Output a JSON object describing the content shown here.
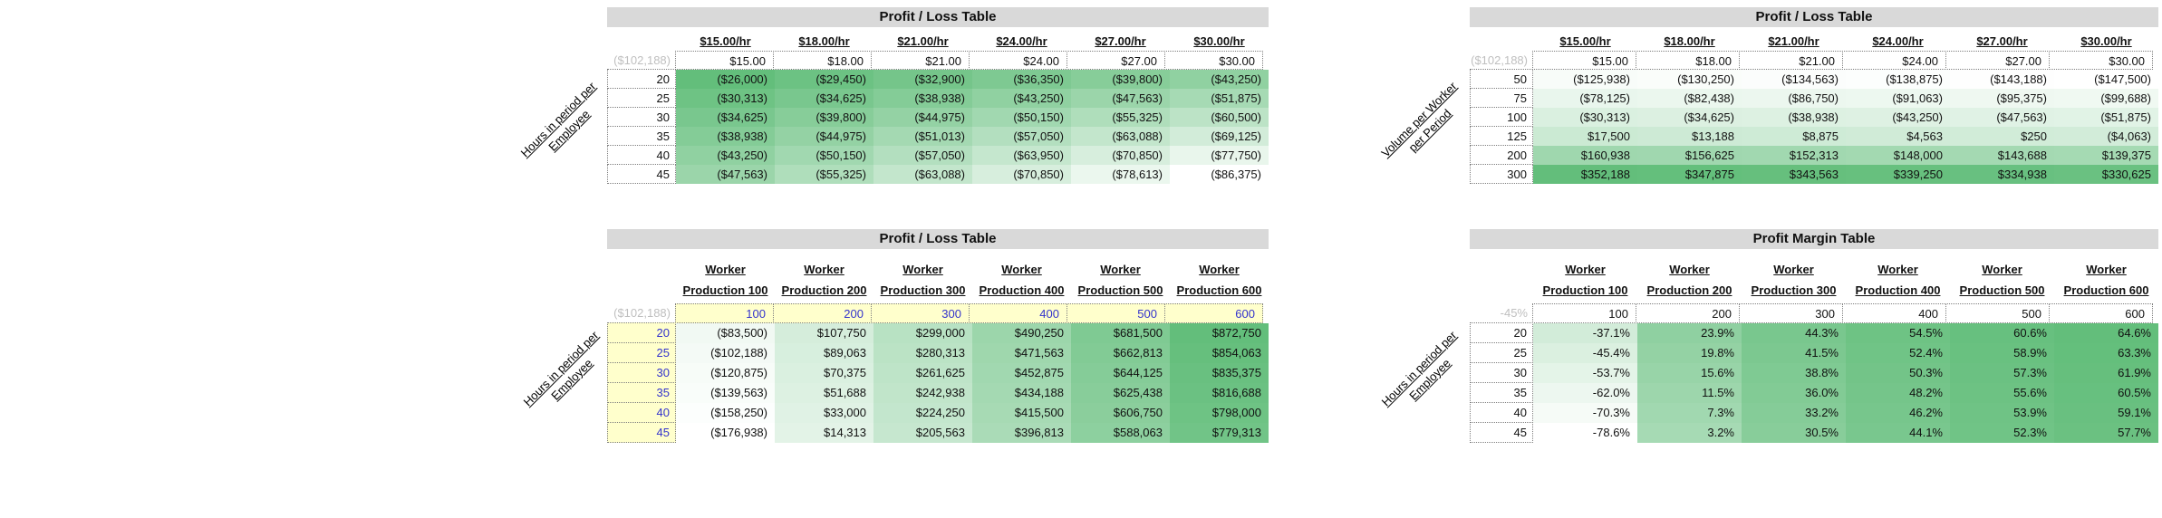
{
  "colors": {
    "scale_max_green": "#63BE7B",
    "scale_min": "#FFFFFF",
    "title_bar_bg": "#D9D9D9",
    "highlight_bg": "#FFFFCC",
    "highlight_text": "#3333CC",
    "muted_text": "#BFBFBF"
  },
  "tables": [
    {
      "title": "Profit / Loss Table",
      "axis_label": [
        "Hours in period per",
        "Employee"
      ],
      "corner": "($102,188)",
      "col_headers": [
        [
          "$15.00/hr"
        ],
        [
          "$18.00/hr"
        ],
        [
          "$21.00/hr"
        ],
        [
          "$24.00/hr"
        ],
        [
          "$27.00/hr"
        ],
        [
          "$30.00/hr"
        ]
      ],
      "ref_row": [
        "$15.00",
        "$18.00",
        "$21.00",
        "$24.00",
        "$27.00",
        "$30.00"
      ],
      "row_headers": [
        "20",
        "25",
        "30",
        "35",
        "40",
        "45"
      ],
      "rows": [
        [
          "($26,000)",
          "($29,450)",
          "($32,900)",
          "($36,350)",
          "($39,800)",
          "($43,250)"
        ],
        [
          "($30,313)",
          "($34,625)",
          "($38,938)",
          "($43,250)",
          "($47,563)",
          "($51,875)"
        ],
        [
          "($34,625)",
          "($39,800)",
          "($44,975)",
          "($50,150)",
          "($55,325)",
          "($60,500)"
        ],
        [
          "($38,938)",
          "($44,975)",
          "($51,013)",
          "($57,050)",
          "($63,088)",
          "($69,125)"
        ],
        [
          "($43,250)",
          "($50,150)",
          "($57,050)",
          "($63,950)",
          "($70,850)",
          "($77,750)"
        ],
        [
          "($47,563)",
          "($55,325)",
          "($63,088)",
          "($70,850)",
          "($78,613)",
          "($86,375)"
        ]
      ],
      "highlight_headers": false
    },
    {
      "title": "Profit / Loss Table",
      "axis_label": [
        "Volume per Worker",
        "per Period"
      ],
      "corner": "($102,188)",
      "col_headers": [
        [
          "$15.00/hr"
        ],
        [
          "$18.00/hr"
        ],
        [
          "$21.00/hr"
        ],
        [
          "$24.00/hr"
        ],
        [
          "$27.00/hr"
        ],
        [
          "$30.00/hr"
        ]
      ],
      "ref_row": [
        "$15.00",
        "$18.00",
        "$21.00",
        "$24.00",
        "$27.00",
        "$30.00"
      ],
      "row_headers": [
        "50",
        "75",
        "100",
        "125",
        "200",
        "300"
      ],
      "rows": [
        [
          "($125,938)",
          "($130,250)",
          "($134,563)",
          "($138,875)",
          "($143,188)",
          "($147,500)"
        ],
        [
          "($78,125)",
          "($82,438)",
          "($86,750)",
          "($91,063)",
          "($95,375)",
          "($99,688)"
        ],
        [
          "($30,313)",
          "($34,625)",
          "($38,938)",
          "($43,250)",
          "($47,563)",
          "($51,875)"
        ],
        [
          "$17,500",
          "$13,188",
          "$8,875",
          "$4,563",
          "$250",
          "($4,063)"
        ],
        [
          "$160,938",
          "$156,625",
          "$152,313",
          "$148,000",
          "$143,688",
          "$139,375"
        ],
        [
          "$352,188",
          "$347,875",
          "$343,563",
          "$339,250",
          "$334,938",
          "$330,625"
        ]
      ],
      "highlight_headers": false
    },
    {
      "title": "Profit / Loss Table",
      "axis_label": [
        "Hours in period per",
        "Employee"
      ],
      "corner": "($102,188)",
      "col_headers": [
        [
          "Worker",
          "Production 100"
        ],
        [
          "Worker",
          "Production 200"
        ],
        [
          "Worker",
          "Production 300"
        ],
        [
          "Worker",
          "Production 400"
        ],
        [
          "Worker",
          "Production 500"
        ],
        [
          "Worker",
          "Production 600"
        ]
      ],
      "ref_row": [
        "100",
        "200",
        "300",
        "400",
        "500",
        "600"
      ],
      "row_headers": [
        "20",
        "25",
        "30",
        "35",
        "40",
        "45"
      ],
      "rows": [
        [
          "($83,500)",
          "$107,750",
          "$299,000",
          "$490,250",
          "$681,500",
          "$872,750"
        ],
        [
          "($102,188)",
          "$89,063",
          "$280,313",
          "$471,563",
          "$662,813",
          "$854,063"
        ],
        [
          "($120,875)",
          "$70,375",
          "$261,625",
          "$452,875",
          "$644,125",
          "$835,375"
        ],
        [
          "($139,563)",
          "$51,688",
          "$242,938",
          "$434,188",
          "$625,438",
          "$816,688"
        ],
        [
          "($158,250)",
          "$33,000",
          "$224,250",
          "$415,500",
          "$606,750",
          "$798,000"
        ],
        [
          "($176,938)",
          "$14,313",
          "$205,563",
          "$396,813",
          "$588,063",
          "$779,313"
        ]
      ],
      "highlight_headers": true
    },
    {
      "title": "Profit Margin Table",
      "axis_label": [
        "Hours in period per",
        "Employee"
      ],
      "corner": "-45%",
      "col_headers": [
        [
          "Worker",
          "Production 100"
        ],
        [
          "Worker",
          "Production 200"
        ],
        [
          "Worker",
          "Production 300"
        ],
        [
          "Worker",
          "Production 400"
        ],
        [
          "Worker",
          "Production 500"
        ],
        [
          "Worker",
          "Production 600"
        ]
      ],
      "ref_row": [
        "100",
        "200",
        "300",
        "400",
        "500",
        "600"
      ],
      "row_headers": [
        "20",
        "25",
        "30",
        "35",
        "40",
        "45"
      ],
      "rows": [
        [
          "-37.1%",
          "23.9%",
          "44.3%",
          "54.5%",
          "60.6%",
          "64.6%"
        ],
        [
          "-45.4%",
          "19.8%",
          "41.5%",
          "52.4%",
          "58.9%",
          "63.3%"
        ],
        [
          "-53.7%",
          "15.6%",
          "38.8%",
          "50.3%",
          "57.3%",
          "61.9%"
        ],
        [
          "-62.0%",
          "11.5%",
          "36.0%",
          "48.2%",
          "55.6%",
          "60.5%"
        ],
        [
          "-70.3%",
          "7.3%",
          "33.2%",
          "46.2%",
          "53.9%",
          "59.1%"
        ],
        [
          "-78.6%",
          "3.2%",
          "30.5%",
          "44.1%",
          "52.3%",
          "57.7%"
        ]
      ],
      "highlight_headers": false
    }
  ]
}
